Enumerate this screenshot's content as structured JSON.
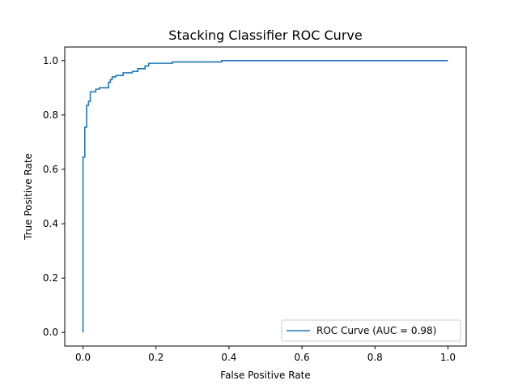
{
  "chart_data": {
    "type": "line",
    "title": "Stacking Classifier ROC Curve",
    "xlabel": "False Positive Rate",
    "ylabel": "True Positive Rate",
    "xlim": [
      -0.05,
      1.05
    ],
    "ylim": [
      -0.05,
      1.05
    ],
    "xticks": [
      0.0,
      0.2,
      0.4,
      0.6,
      0.8,
      1.0
    ],
    "xtick_labels": [
      "0.0",
      "0.2",
      "0.4",
      "0.6",
      "0.8",
      "1.0"
    ],
    "yticks": [
      0.0,
      0.2,
      0.4,
      0.6,
      0.8,
      1.0
    ],
    "ytick_labels": [
      "0.0",
      "0.2",
      "0.4",
      "0.6",
      "0.8",
      "1.0"
    ],
    "grid": false,
    "legend_position": "lower-right",
    "series": [
      {
        "name": "ROC Curve (AUC = 0.98)",
        "color": "#1f77b4",
        "step": true,
        "x": [
          0.0,
          0.0,
          0.005,
          0.005,
          0.01,
          0.01,
          0.015,
          0.015,
          0.02,
          0.02,
          0.025,
          0.025,
          0.035,
          0.035,
          0.045,
          0.045,
          0.055,
          0.055,
          0.07,
          0.07,
          0.075,
          0.075,
          0.08,
          0.08,
          0.09,
          0.09,
          0.11,
          0.11,
          0.135,
          0.135,
          0.15,
          0.15,
          0.17,
          0.17,
          0.18,
          0.18,
          0.245,
          0.245,
          0.38,
          0.38,
          1.0
        ],
        "y": [
          0.0,
          0.645,
          0.645,
          0.755,
          0.755,
          0.835,
          0.835,
          0.85,
          0.85,
          0.885,
          0.885,
          0.885,
          0.885,
          0.895,
          0.895,
          0.9,
          0.9,
          0.9,
          0.9,
          0.92,
          0.92,
          0.93,
          0.93,
          0.94,
          0.94,
          0.945,
          0.945,
          0.955,
          0.955,
          0.96,
          0.96,
          0.97,
          0.97,
          0.98,
          0.98,
          0.99,
          0.99,
          0.995,
          0.995,
          1.0,
          1.0
        ]
      }
    ]
  }
}
